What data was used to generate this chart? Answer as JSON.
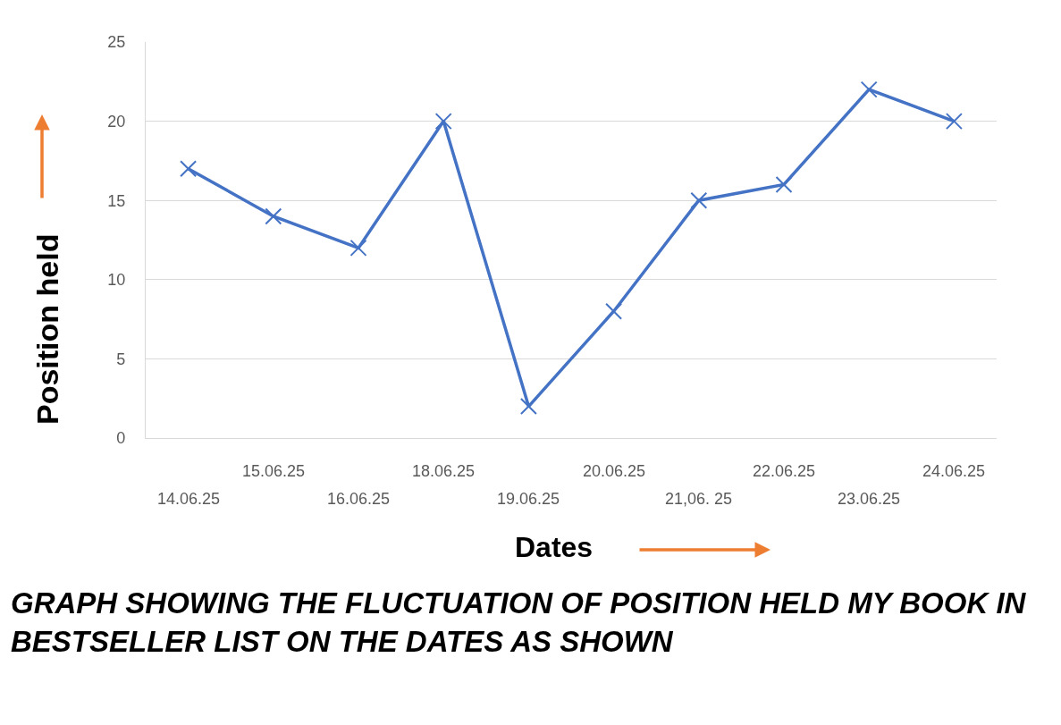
{
  "chart_data": {
    "type": "line",
    "title": "GRAPH SHOWING THE FLUCTUATION OF POSITION HELD MY BOOK IN BESTSELLER LIST ON THE DATES AS SHOWN",
    "xlabel": "Dates",
    "ylabel": "Position held",
    "categories": [
      "14.06.25",
      "15.06.25",
      "16.06.25",
      "18.06.25",
      "19.06.25",
      "20.06.25",
      "21,06. 25",
      "22.06.25",
      "23.06.25",
      "24.06.25"
    ],
    "series": [
      {
        "color": "#4472c4",
        "values": [
          17,
          14,
          12,
          20,
          2,
          8,
          15,
          16,
          22,
          20
        ]
      }
    ],
    "ylim": [
      0,
      25
    ],
    "yticks": [
      0,
      5,
      10,
      15,
      20,
      25
    ],
    "grid": "y",
    "legend": false,
    "marker": "cross",
    "line_style": "solid"
  }
}
